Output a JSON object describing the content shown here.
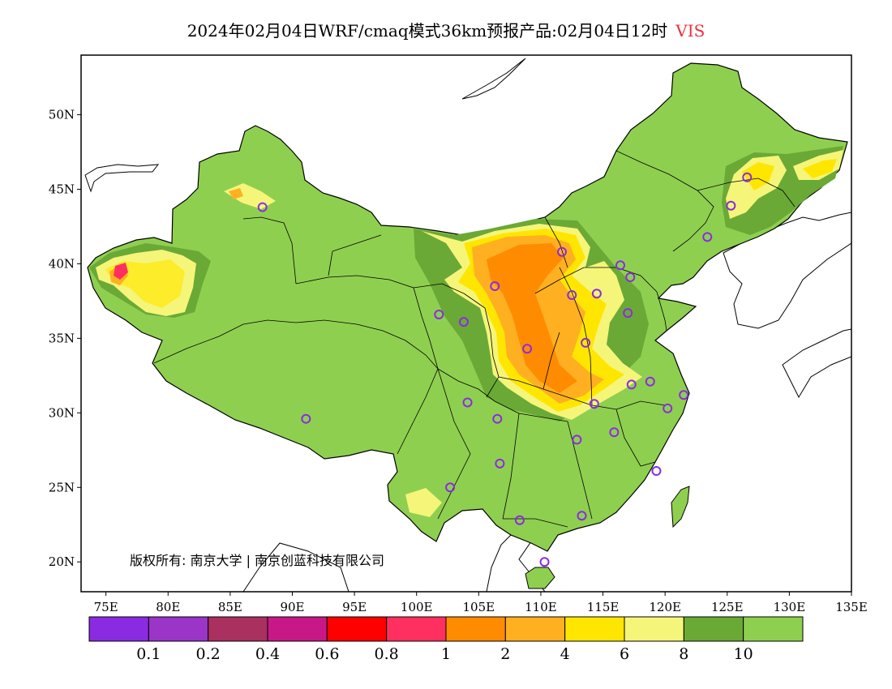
{
  "title": {
    "main": "2024年02月04日WRF/cmaq模式36km预报产品:02月04日12时",
    "variable": "VIS"
  },
  "map": {
    "lon_range": [
      73,
      135
    ],
    "lat_range": [
      18,
      54
    ],
    "lon_ticks": [
      "75E",
      "80E",
      "85E",
      "90E",
      "95E",
      "100E",
      "105E",
      "110E",
      "115E",
      "120E",
      "125E",
      "130E",
      "135E"
    ],
    "lat_ticks": [
      "20N",
      "25N",
      "30N",
      "35N",
      "40N",
      "45N",
      "50N"
    ],
    "copyright": "版权所有: 南京大学 | 南京创蓝科技有限公司"
  },
  "colors": {
    "land_base": "#8fcf50",
    "dark_green": "#6aa935",
    "pale_yellow": "#f5f57a",
    "yellow": "#ffe600",
    "light_orange": "#ffb020",
    "orange": "#ff8c00",
    "station_ring": "#8b2be2"
  },
  "colorbar": {
    "colors": [
      "#8a2be2",
      "#9a35c8",
      "#aa3060",
      "#c81888",
      "#ff0000",
      "#ff3060",
      "#ff8c00",
      "#ffb020",
      "#ffe600",
      "#f5f57a",
      "#6aa935",
      "#8fcf50"
    ],
    "labels": [
      "0.1",
      "0.2",
      "0.4",
      "0.6",
      "0.8",
      "1",
      "2",
      "4",
      "6",
      "8",
      "10"
    ]
  },
  "stations": [
    {
      "lon": 87.6,
      "lat": 43.8
    },
    {
      "lon": 91.1,
      "lat": 29.6
    },
    {
      "lon": 101.8,
      "lat": 36.6
    },
    {
      "lon": 103.8,
      "lat": 36.1
    },
    {
      "lon": 106.3,
      "lat": 38.5
    },
    {
      "lon": 104.1,
      "lat": 30.7
    },
    {
      "lon": 106.5,
      "lat": 29.6
    },
    {
      "lon": 106.7,
      "lat": 26.6
    },
    {
      "lon": 102.7,
      "lat": 25.0
    },
    {
      "lon": 108.3,
      "lat": 22.8
    },
    {
      "lon": 110.3,
      "lat": 20.0
    },
    {
      "lon": 113.3,
      "lat": 23.1
    },
    {
      "lon": 112.9,
      "lat": 28.2
    },
    {
      "lon": 114.3,
      "lat": 30.6
    },
    {
      "lon": 115.9,
      "lat": 28.7
    },
    {
      "lon": 117.3,
      "lat": 31.9
    },
    {
      "lon": 118.8,
      "lat": 32.1
    },
    {
      "lon": 120.2,
      "lat": 30.3
    },
    {
      "lon": 121.5,
      "lat": 31.2
    },
    {
      "lon": 119.3,
      "lat": 26.1
    },
    {
      "lon": 113.6,
      "lat": 34.7
    },
    {
      "lon": 108.9,
      "lat": 34.3
    },
    {
      "lon": 112.5,
      "lat": 37.9
    },
    {
      "lon": 114.5,
      "lat": 38.0
    },
    {
      "lon": 117.0,
      "lat": 36.7
    },
    {
      "lon": 117.2,
      "lat": 39.1
    },
    {
      "lon": 116.4,
      "lat": 39.9
    },
    {
      "lon": 111.7,
      "lat": 40.8
    },
    {
      "lon": 123.4,
      "lat": 41.8
    },
    {
      "lon": 125.3,
      "lat": 43.9
    },
    {
      "lon": 126.6,
      "lat": 45.8
    }
  ]
}
